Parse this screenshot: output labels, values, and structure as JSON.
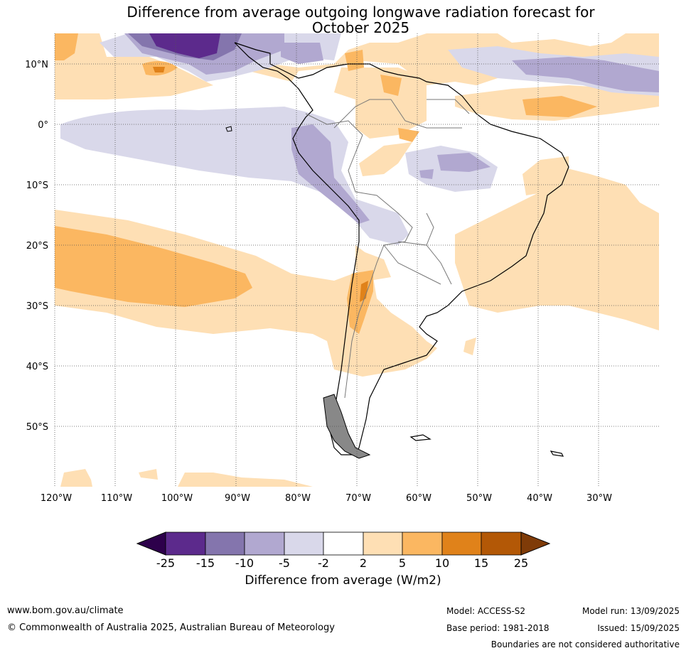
{
  "title_line1": "Difference from average outgoing longwave radiation forecast for",
  "title_line2": "October 2025",
  "lat_labels": [
    "10°N",
    "0°",
    "10°S",
    "20°S",
    "30°S",
    "40°S",
    "50°S"
  ],
  "lon_labels": [
    "120°W",
    "110°W",
    "100°W",
    "90°W",
    "80°W",
    "70°W",
    "60°W",
    "50°W",
    "40°W",
    "30°W"
  ],
  "colorbar": {
    "label": "Difference from average (W/m2)",
    "ticks": [
      "-25",
      "-15",
      "-10",
      "-5",
      "-2",
      "2",
      "5",
      "10",
      "15",
      "25"
    ],
    "colors": [
      "#5c2a8c",
      "#8475ad",
      "#b1a8d0",
      "#d9d8ea",
      "#ffffff",
      "#fedfb4",
      "#fbb761",
      "#e0821a",
      "#b35806"
    ],
    "under_color": "#2d004b",
    "over_color": "#7f3b08"
  },
  "footer": {
    "website": "www.bom.gov.au/climate",
    "copyright": "© Commonwealth of Australia 2025, Australian Bureau of Meteorology",
    "model": "Model: ACCESS-S2",
    "base_period": "Base period: 1981-2018",
    "model_run": "Model run: 13/09/2025",
    "issued": "Issued: 15/09/2025",
    "disclaimer": "Boundaries are not considered authoritative"
  }
}
